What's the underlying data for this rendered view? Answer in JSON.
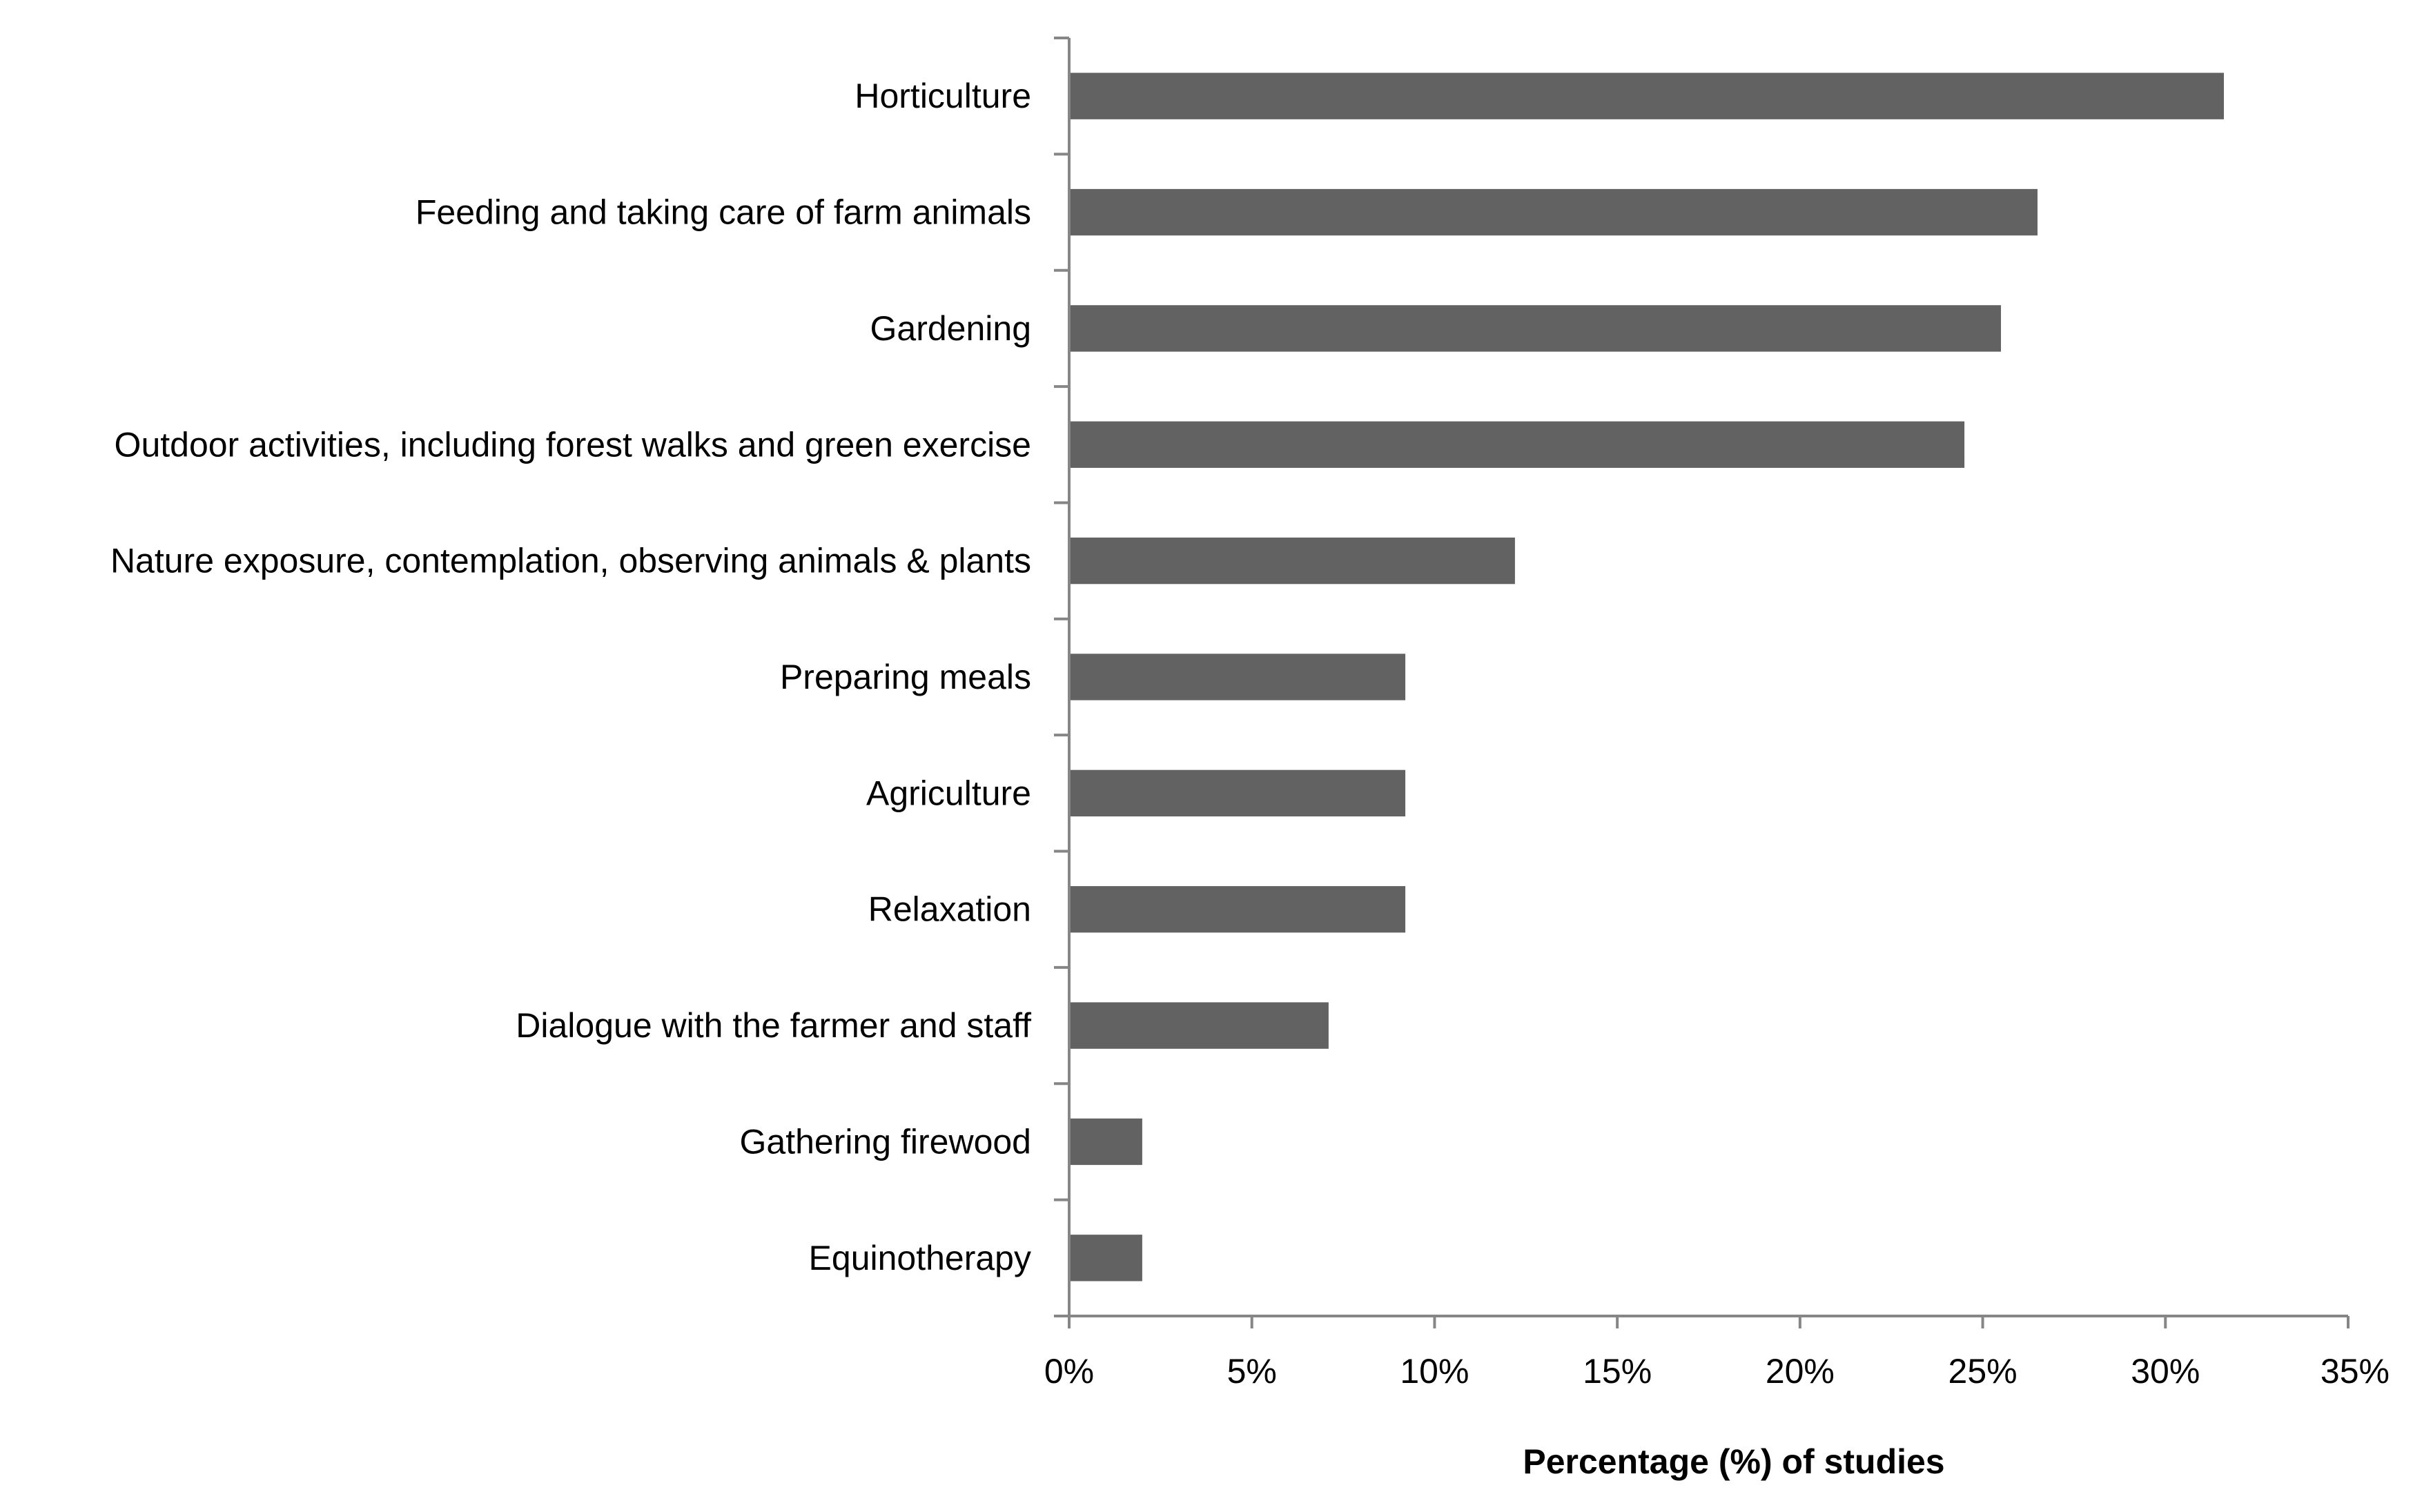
{
  "chart_data": {
    "type": "bar",
    "orientation": "horizontal",
    "categories": [
      "Horticulture",
      "Feeding and taking care of farm animals",
      "Gardening",
      "Outdoor activities, including forest walks and green exercise",
      "Nature exposure, contemplation, observing animals & plants",
      "Preparing meals",
      "Agriculture",
      "Relaxation",
      "Dialogue with the farmer and staff",
      "Gathering firewood",
      "Equinotherapy"
    ],
    "values": [
      31.6,
      26.5,
      25.5,
      24.5,
      12.2,
      9.2,
      9.2,
      9.2,
      7.1,
      2.0,
      2.0
    ],
    "xlim": [
      0,
      35
    ],
    "xticks": [
      0,
      5,
      10,
      15,
      20,
      25,
      30,
      35
    ],
    "tick_labels": [
      "0%",
      "5%",
      "10%",
      "15%",
      "20%",
      "25%",
      "30%",
      "35%"
    ],
    "xlabel": "Percentage (%) of studies",
    "ylabel": "",
    "title": "",
    "grid": false,
    "legend": "none",
    "bar_color": "#626262",
    "axis_color": "#868686"
  }
}
